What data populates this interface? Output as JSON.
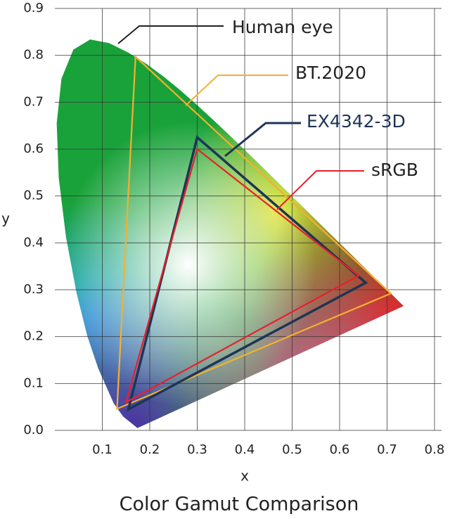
{
  "chart_data": {
    "type": "line",
    "title": "Color Gamut Comparison",
    "xlabel": "x",
    "ylabel": "y",
    "xlim": [
      0,
      0.8
    ],
    "ylim": [
      0,
      0.9
    ],
    "xticks": [
      0.1,
      0.2,
      0.3,
      0.4,
      0.5,
      0.6,
      0.7,
      0.8
    ],
    "yticks": [
      {
        "value": 0,
        "label": "0.0"
      },
      0.1,
      0.2,
      0.3,
      0.4,
      0.5,
      0.6,
      0.7,
      0.8,
      0.9
    ],
    "grid": true,
    "series": [
      {
        "name": "Human eye",
        "color": "#1aa23a",
        "fill": true,
        "x": [
          0.1741,
          0.144,
          0.1241,
          0.0913,
          0.0687,
          0.0454,
          0.0235,
          0.0082,
          0.0039,
          0.0139,
          0.0389,
          0.0743,
          0.1142,
          0.1547,
          0.1929,
          0.2296,
          0.2658,
          0.3016,
          0.3373,
          0.3731,
          0.4087,
          0.4441,
          0.4788,
          0.5125,
          0.5448,
          0.5752,
          0.6029,
          0.627,
          0.6482,
          0.6658,
          0.6801,
          0.7347
        ],
        "y": [
          0.005,
          0.0297,
          0.0578,
          0.1327,
          0.2007,
          0.295,
          0.4127,
          0.5384,
          0.6548,
          0.7502,
          0.812,
          0.8338,
          0.8262,
          0.8059,
          0.7816,
          0.7543,
          0.7243,
          0.6923,
          0.6589,
          0.6245,
          0.5896,
          0.5547,
          0.5202,
          0.4866,
          0.4544,
          0.4242,
          0.3965,
          0.3725,
          0.3514,
          0.334,
          0.3197,
          0.2653
        ]
      },
      {
        "name": "BT.2020",
        "color": "#f4b030",
        "x": [
          0.708,
          0.17,
          0.131
        ],
        "y": [
          0.292,
          0.797,
          0.046
        ]
      },
      {
        "name": "EX4342-3D",
        "color": "#1d3557",
        "x": [
          0.655,
          0.3,
          0.155
        ],
        "y": [
          0.315,
          0.625,
          0.045
        ]
      },
      {
        "name": "sRGB",
        "color": "#e8202a",
        "x": [
          0.64,
          0.3,
          0.15
        ],
        "y": [
          0.33,
          0.6,
          0.06
        ]
      }
    ]
  }
}
